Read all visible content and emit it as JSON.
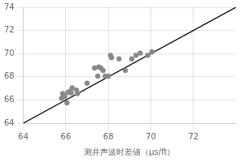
{
  "chart_data": {
    "type": "scatter",
    "xlabel": "测井声波时差値（μs/ft）",
    "xlim": [
      64,
      74
    ],
    "ylim": [
      64,
      74
    ],
    "xticks": [
      64,
      66,
      68,
      70,
      72
    ],
    "yticks": [
      64,
      66,
      68,
      70,
      72,
      74
    ],
    "grid": true,
    "series": [
      {
        "type": "line",
        "color": "#000000",
        "x": [
          64,
          74
        ],
        "values": [
          64,
          74
        ]
      },
      {
        "type": "scatter",
        "color": "#888888",
        "x": [
          65.8,
          65.85,
          65.95,
          66.05,
          66.1,
          66.2,
          66.25,
          66.3,
          66.5,
          66.55,
          67.0,
          67.35,
          67.5,
          67.55,
          67.65,
          67.75,
          67.85,
          68.0,
          68.1,
          68.15,
          68.5,
          68.8,
          69.1,
          69.3,
          69.5,
          69.85,
          70.05
        ],
        "values": [
          66.15,
          66.55,
          66.3,
          65.75,
          66.65,
          66.75,
          66.6,
          67.05,
          66.85,
          66.55,
          67.45,
          68.75,
          68.05,
          68.85,
          68.75,
          68.55,
          68.05,
          68.05,
          69.85,
          69.65,
          69.55,
          68.55,
          69.55,
          69.85,
          70.05,
          69.85,
          70.15
        ]
      }
    ]
  }
}
